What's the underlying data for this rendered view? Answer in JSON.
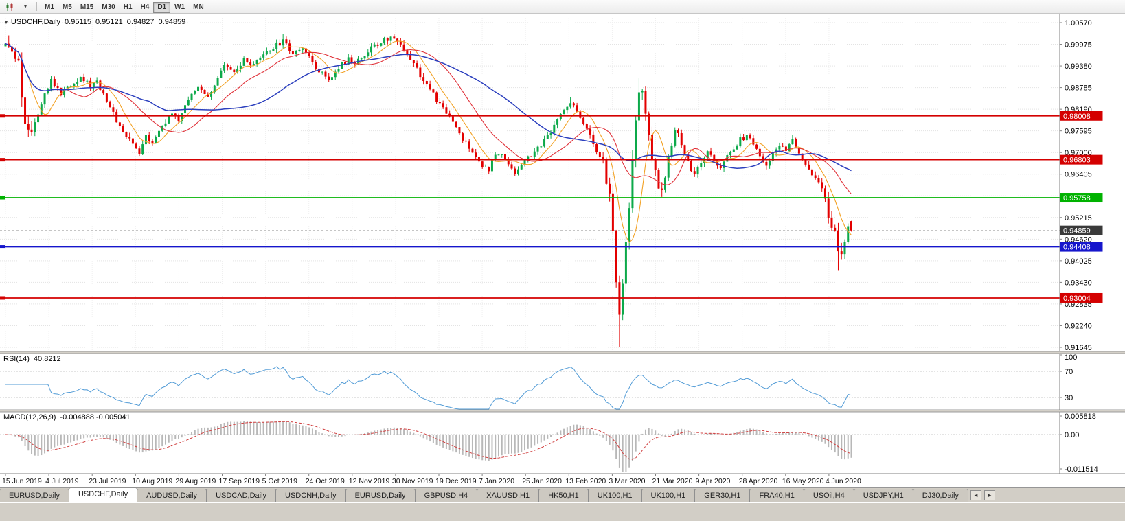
{
  "toolbar": {
    "timeframes": [
      "M1",
      "M5",
      "M15",
      "M30",
      "H1",
      "H4",
      "D1",
      "W1",
      "MN"
    ],
    "active_timeframe": "D1",
    "icons": [
      "candlestick-chart-icon",
      "chevron-down-icon"
    ]
  },
  "chart_header": {
    "symbol_label": "USDCHF,Daily",
    "open": "0.95115",
    "high": "0.95121",
    "low": "0.94827",
    "close": "0.94859"
  },
  "chart_data": {
    "type": "candlestick",
    "symbol": "USDCHF",
    "timeframe": "Daily",
    "last_ohlc": {
      "open": 0.95115,
      "high": 0.95121,
      "low": 0.94827,
      "close": 0.94859
    },
    "y_axis": {
      "max": 1.0057,
      "min": 0.91645,
      "tick_step": 0.00595,
      "tick_labels": [
        "1.00570",
        "0.99975",
        "0.99380",
        "0.98785",
        "0.98190",
        "0.97595",
        "0.97000",
        "0.96405",
        "0.95810",
        "0.95215",
        "0.94620",
        "0.94025",
        "0.93430",
        "0.92835",
        "0.92240",
        "0.91645"
      ]
    },
    "x_axis_dates": [
      "15 Jun 2019",
      "4 Jul 2019",
      "23 Jul 2019",
      "10 Aug 2019",
      "29 Aug 2019",
      "17 Sep 2019",
      "5 Oct 2019",
      "24 Oct 2019",
      "12 Nov 2019",
      "30 Nov 2019",
      "19 Dec 2019",
      "7 Jan 2020",
      "25 Jan 2020",
      "13 Feb 2020",
      "3 Mar 2020",
      "21 Mar 2020",
      "9 Apr 2020",
      "28 Apr 2020",
      "16 May 2020",
      "4 Jun 2020"
    ],
    "horizontal_lines": [
      {
        "price": 0.98008,
        "label": "0.98008",
        "color": "#d40000"
      },
      {
        "price": 0.96803,
        "label": "0.96803",
        "color": "#d40000"
      },
      {
        "price": 0.95758,
        "label": "0.95758",
        "color": "#00b200"
      },
      {
        "price": 0.94408,
        "label": "0.94408",
        "color": "#1616cc"
      },
      {
        "price": 0.93004,
        "label": "0.93004",
        "color": "#d40000"
      }
    ],
    "current_price": {
      "value": 0.94859,
      "label": "0.94859",
      "tag_color": "#3a3a3a"
    },
    "colors": {
      "up_candle": "#0ca94a",
      "down_candle": "#e30000",
      "grid": "#e3e3e3"
    },
    "num_candles": 260,
    "price_path": [
      [
        0,
        0.9992
      ],
      [
        2,
        0.9978
      ],
      [
        4,
        0.9935
      ],
      [
        6,
        0.979
      ],
      [
        8,
        0.9762
      ],
      [
        10,
        0.9812
      ],
      [
        12,
        0.9868
      ],
      [
        14,
        0.9898
      ],
      [
        17,
        0.9862
      ],
      [
        20,
        0.9886
      ],
      [
        23,
        0.991
      ],
      [
        26,
        0.9882
      ],
      [
        28,
        0.9896
      ],
      [
        31,
        0.9845
      ],
      [
        34,
        0.9788
      ],
      [
        37,
        0.9745
      ],
      [
        41,
        0.97
      ],
      [
        43,
        0.9752
      ],
      [
        45,
        0.9728
      ],
      [
        48,
        0.9775
      ],
      [
        51,
        0.9802
      ],
      [
        53,
        0.9788
      ],
      [
        56,
        0.9846
      ],
      [
        59,
        0.988
      ],
      [
        62,
        0.9858
      ],
      [
        65,
        0.9902
      ],
      [
        67,
        0.9936
      ],
      [
        70,
        0.9918
      ],
      [
        73,
        0.9952
      ],
      [
        76,
        0.9936
      ],
      [
        79,
        0.9968
      ],
      [
        82,
        0.999
      ],
      [
        85,
        1.0004
      ],
      [
        88,
        0.9974
      ],
      [
        91,
        0.9992
      ],
      [
        93,
        0.9958
      ],
      [
        96,
        0.9928
      ],
      [
        99,
        0.9898
      ],
      [
        102,
        0.9936
      ],
      [
        105,
        0.9956
      ],
      [
        107,
        0.994
      ],
      [
        110,
        0.9972
      ],
      [
        113,
        0.9992
      ],
      [
        116,
        1.0008
      ],
      [
        119,
        1.0018
      ],
      [
        122,
        0.9984
      ],
      [
        125,
        0.9948
      ],
      [
        128,
        0.9898
      ],
      [
        131,
        0.9858
      ],
      [
        134,
        0.9818
      ],
      [
        137,
        0.9788
      ],
      [
        140,
        0.9738
      ],
      [
        143,
        0.9695
      ],
      [
        146,
        0.9668
      ],
      [
        148,
        0.9656
      ],
      [
        151,
        0.9702
      ],
      [
        154,
        0.9672
      ],
      [
        156,
        0.9645
      ],
      [
        158,
        0.9668
      ],
      [
        161,
        0.9695
      ],
      [
        164,
        0.972
      ],
      [
        167,
        0.9752
      ],
      [
        169,
        0.9788
      ],
      [
        171,
        0.9822
      ],
      [
        173,
        0.9838
      ],
      [
        175,
        0.9812
      ],
      [
        177,
        0.9785
      ],
      [
        179,
        0.9742
      ],
      [
        181,
        0.9705
      ],
      [
        183,
        0.9665
      ],
      [
        185,
        0.9585
      ],
      [
        186,
        0.949
      ],
      [
        187,
        0.936
      ],
      [
        188,
        0.9245
      ],
      [
        189,
        0.932
      ],
      [
        190,
        0.9445
      ],
      [
        191,
        0.9558
      ],
      [
        192,
        0.9668
      ],
      [
        193,
        0.979
      ],
      [
        194,
        0.9868
      ],
      [
        195,
        0.9882
      ],
      [
        196,
        0.9818
      ],
      [
        197,
        0.9742
      ],
      [
        199,
        0.9648
      ],
      [
        201,
        0.9586
      ],
      [
        203,
        0.9682
      ],
      [
        205,
        0.9768
      ],
      [
        207,
        0.9728
      ],
      [
        209,
        0.9672
      ],
      [
        211,
        0.9635
      ],
      [
        213,
        0.9668
      ],
      [
        215,
        0.97
      ],
      [
        217,
        0.9678
      ],
      [
        219,
        0.9655
      ],
      [
        221,
        0.9686
      ],
      [
        223,
        0.9712
      ],
      [
        225,
        0.9736
      ],
      [
        227,
        0.9748
      ],
      [
        229,
        0.9722
      ],
      [
        231,
        0.9692
      ],
      [
        233,
        0.9665
      ],
      [
        235,
        0.9702
      ],
      [
        237,
        0.9722
      ],
      [
        239,
        0.9712
      ],
      [
        241,
        0.9732
      ],
      [
        243,
        0.97
      ],
      [
        245,
        0.9662
      ],
      [
        247,
        0.964
      ],
      [
        249,
        0.9612
      ],
      [
        251,
        0.9565
      ],
      [
        252,
        0.9535
      ],
      [
        253,
        0.9505
      ],
      [
        254,
        0.9478
      ],
      [
        255,
        0.9428
      ],
      [
        256,
        0.9402
      ],
      [
        257,
        0.9452
      ],
      [
        258,
        0.9492
      ],
      [
        259,
        0.9486
      ]
    ],
    "volatility_zones": [
      [
        4,
        9
      ],
      [
        183,
        201
      ],
      [
        250,
        257
      ]
    ],
    "wick_extremes": {
      "lows": [
        [
          41,
          0.9692
        ],
        [
          148,
          0.964
        ],
        [
          188,
          0.9165
        ],
        [
          201,
          0.9578
        ],
        [
          255,
          0.9375
        ]
      ],
      "highs": [
        [
          1,
          1.0022
        ],
        [
          85,
          1.0026
        ],
        [
          119,
          1.0024
        ],
        [
          173,
          0.9852
        ],
        [
          194,
          0.9904
        ]
      ]
    },
    "moving_averages": [
      {
        "name": "fast-ma",
        "period": 8,
        "color": "#f2a124"
      },
      {
        "name": "mid-ma",
        "period": 20,
        "color": "#e03038"
      },
      {
        "name": "slow-ma",
        "period": 45,
        "color": "#2b3fbe"
      }
    ],
    "rsi": {
      "label": "RSI(14)",
      "value_label": "40.8212",
      "period": 14,
      "ticks": [
        "100",
        "70",
        "30"
      ],
      "levels": [
        70,
        30
      ],
      "color": "#519bd6"
    },
    "macd": {
      "label": "MACD(12,26,9)",
      "value_label": "-0.004888 -0.005041",
      "fast": 12,
      "slow": 26,
      "signal": 9,
      "ticks": [
        "0.005818",
        "0.00",
        "-0.011514"
      ],
      "histogram_color": "#b8b8b8",
      "signal_color": "#d04040"
    }
  },
  "tab_bar": {
    "scroll_left": "◄",
    "scroll_right": "►",
    "tabs": [
      {
        "label": "EURUSD,Daily",
        "active": false
      },
      {
        "label": "USDCHF,Daily",
        "active": true
      },
      {
        "label": "AUDUSD,Daily",
        "active": false
      },
      {
        "label": "USDCAD,Daily",
        "active": false
      },
      {
        "label": "USDCNH,Daily",
        "active": false
      },
      {
        "label": "EURUSD,Daily",
        "active": false
      },
      {
        "label": "GBPUSD,H4",
        "active": false
      },
      {
        "label": "XAUUSD,H1",
        "active": false
      },
      {
        "label": "HK50,H1",
        "active": false
      },
      {
        "label": "UK100,H1",
        "active": false
      },
      {
        "label": "UK100,H1",
        "active": false
      },
      {
        "label": "GER30,H1",
        "active": false
      },
      {
        "label": "FRA40,H1",
        "active": false
      },
      {
        "label": "USOil,H4",
        "active": false
      },
      {
        "label": "USDJPY,H1",
        "active": false
      },
      {
        "label": "DJ30,Daily",
        "active": false
      }
    ]
  }
}
